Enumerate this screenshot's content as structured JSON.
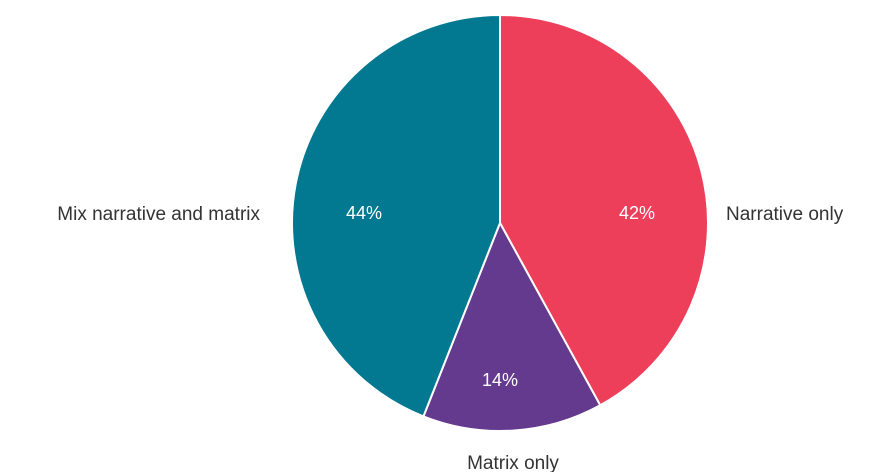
{
  "chart_data": {
    "type": "pie",
    "title": "",
    "slices": [
      {
        "label": "Narrative only",
        "value": 42,
        "value_label": "42%",
        "color": "#ED3E5A"
      },
      {
        "label": "Matrix only",
        "value": 14,
        "value_label": "14%",
        "color": "#643A8E"
      },
      {
        "label": "Mix narrative and matrix",
        "value": 44,
        "value_label": "44%",
        "color": "#027990"
      }
    ],
    "start_angle_deg": 0,
    "direction": "clockwise",
    "legend": "none"
  }
}
